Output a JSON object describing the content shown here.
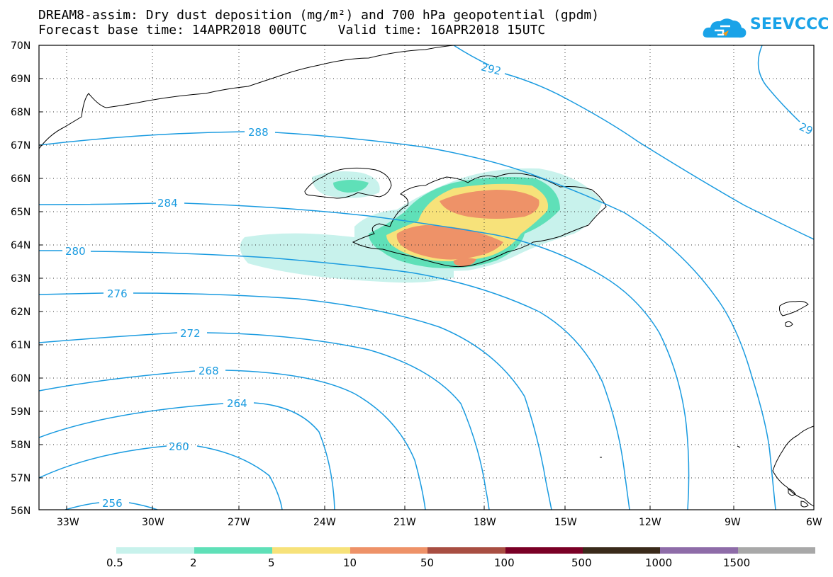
{
  "title_line1": "DREAM8-assim: Dry dust deposition (mg/m²) and 700 hPa geopotential (gpdm)",
  "title_line2": "Forecast base time: 14APR2018 00UTC    Valid time: 16APR2018 15UTC",
  "logo": {
    "text": "SEEVCCC",
    "icon": "cloud-icon",
    "color": "#1aa3e8"
  },
  "lat_labels": [
    "70N",
    "69N",
    "68N",
    "67N",
    "66N",
    "65N",
    "64N",
    "63N",
    "62N",
    "61N",
    "60N",
    "59N",
    "58N",
    "57N",
    "56N"
  ],
  "lon_labels": [
    "33W",
    "30W",
    "27W",
    "24W",
    "21W",
    "18W",
    "15W",
    "12W",
    "9W",
    "6W"
  ],
  "contour_labels": [
    "292",
    "288",
    "284",
    "280",
    "276",
    "272",
    "268",
    "264",
    "260",
    "256",
    "29"
  ],
  "legend": {
    "labels": [
      "0.5",
      "2",
      "5",
      "10",
      "50",
      "100",
      "500",
      "1000",
      "1500"
    ],
    "colors": [
      "#c8f2ec",
      "#5fe0b8",
      "#f7e27a",
      "#ee9268",
      "#a84e42",
      "#7a0026",
      "#3a2a1a",
      "#8e6ca8",
      "#a8a8a8"
    ]
  }
}
